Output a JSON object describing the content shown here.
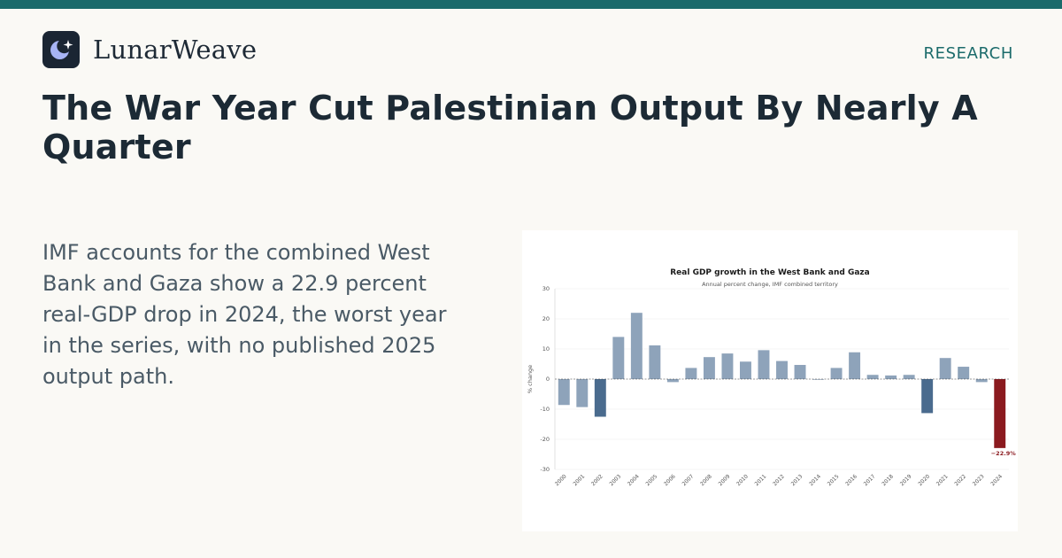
{
  "brand": {
    "name": "LunarWeave",
    "logo_icon": "crescent-moon-star-icon",
    "logo_bg": "#1a2533",
    "logo_fg": "#a7b4f6"
  },
  "header": {
    "section_label": "RESEARCH"
  },
  "article": {
    "headline": "The War Year Cut Palestinian Output By Nearly A Quarter",
    "summary": "IMF accounts for the combined West Bank and Gaza show a 22.9 percent real-GDP drop in 2024, the worst year in the series, with no published 2025 output path."
  },
  "colors": {
    "accent": "#1b6b6b",
    "bar_default": "#8ea3ba",
    "bar_emphasis": "#4a6b8e",
    "bar_highlight": "#8b1a1f"
  },
  "chart_data": {
    "type": "bar",
    "title": "Real GDP growth in the West Bank and Gaza",
    "subtitle": "Annual percent change, IMF combined territory",
    "ylabel": "% change",
    "xlabel": "",
    "ylim": [
      -30,
      30
    ],
    "yticks": [
      30,
      20,
      10,
      0,
      -10,
      -20,
      -30
    ],
    "grid": true,
    "categories": [
      "2000",
      "2001",
      "2002",
      "2003",
      "2004",
      "2005",
      "2006",
      "2007",
      "2008",
      "2009",
      "2010",
      "2011",
      "2012",
      "2013",
      "2014",
      "2015",
      "2016",
      "2017",
      "2018",
      "2019",
      "2020",
      "2021",
      "2022",
      "2023",
      "2024"
    ],
    "values": [
      -8.6,
      -9.3,
      -12.5,
      14.0,
      22.0,
      11.2,
      -1.0,
      3.7,
      7.3,
      8.5,
      5.8,
      9.6,
      6.0,
      4.7,
      -0.2,
      3.7,
      8.9,
      1.4,
      1.2,
      1.4,
      -11.3,
      7.0,
      4.1,
      -1.0,
      -22.9
    ],
    "emphasis": [
      "2002",
      "2020"
    ],
    "highlight": "2024",
    "annotation": {
      "category": "2024",
      "label": "−22.9%"
    }
  }
}
